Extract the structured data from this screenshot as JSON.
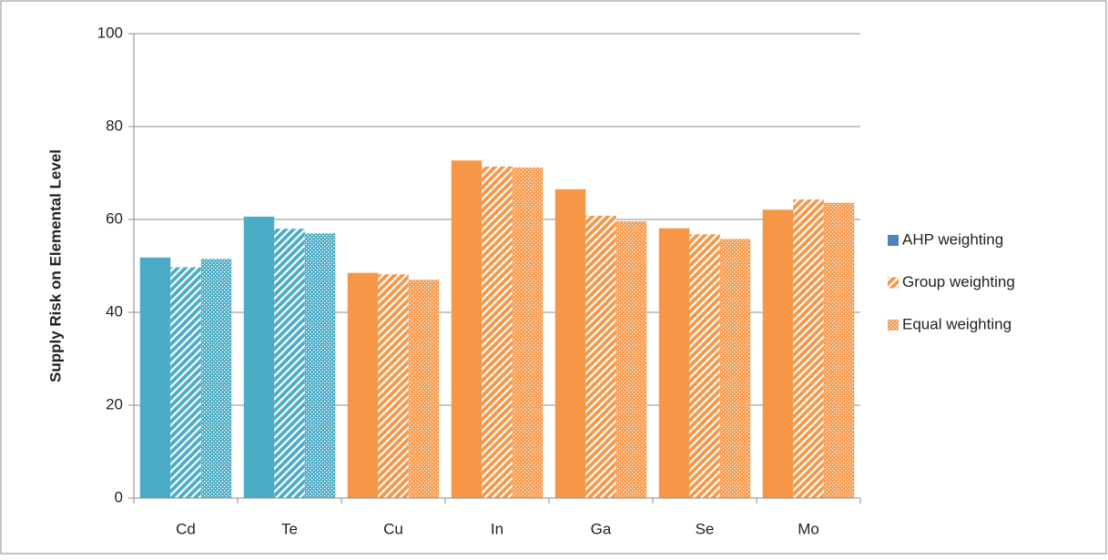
{
  "chart_data": {
    "type": "bar",
    "y_label": "Supply Risk on Elemental Level",
    "categories": [
      "Cd",
      "Te",
      "Cu",
      "In",
      "Ga",
      "Se",
      "Mo"
    ],
    "category_colors": [
      "#4bacc6",
      "#4bacc6",
      "#f79646",
      "#f79646",
      "#f79646",
      "#f79646",
      "#f79646"
    ],
    "series": [
      {
        "name": "AHP weighting",
        "color": "#4f81bd",
        "pattern": "solid",
        "values": [
          51.8,
          60.6,
          48.5,
          72.7,
          66.5,
          58.1,
          62.1
        ]
      },
      {
        "name": "Group weighting",
        "color": "#f79646",
        "pattern": "hatch",
        "values": [
          49.7,
          58.0,
          48.2,
          71.4,
          60.8,
          56.8,
          64.3
        ]
      },
      {
        "name": "Equal weighting",
        "color": "#f79646",
        "pattern": "dots",
        "values": [
          51.5,
          57.0,
          47.0,
          71.2,
          59.6,
          55.8,
          63.6
        ]
      }
    ],
    "ylim": [
      0,
      100
    ],
    "yticks": [
      0,
      20,
      40,
      60,
      80,
      100
    ],
    "grid": true,
    "legend": "right"
  }
}
